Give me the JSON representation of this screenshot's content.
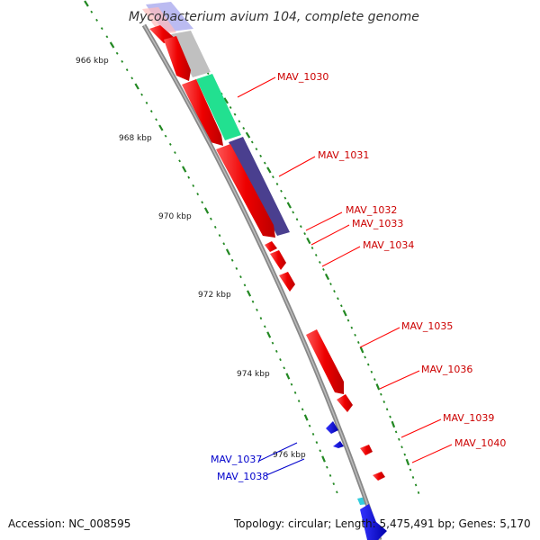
{
  "title": "Mycobacterium avium 104, complete genome",
  "footer": {
    "accession": "Accession: NC_008595",
    "summary": "Topology: circular; Length: 5,475,491 bp; Genes: 5,170"
  },
  "colors": {
    "forward_gene": "#ff0000",
    "reverse_gene": "#0000cc",
    "backbone": "#888888",
    "tick": "#228822",
    "feature_grey": "#c0c0c0",
    "feature_green": "#22e090",
    "feature_navy": "#4a3f8f",
    "feature_lavender": "#9999ee",
    "feature_cyan": "#33ccdd"
  },
  "scale": {
    "ticks": [
      {
        "label": "966 kbp"
      },
      {
        "label": "968 kbp"
      },
      {
        "label": "970 kbp"
      },
      {
        "label": "972 kbp"
      },
      {
        "label": "974 kbp"
      },
      {
        "label": "976 kbp"
      }
    ]
  },
  "genes": [
    {
      "label": "MAV_1030",
      "strand": "forward"
    },
    {
      "label": "MAV_1031",
      "strand": "forward"
    },
    {
      "label": "MAV_1032",
      "strand": "forward"
    },
    {
      "label": "MAV_1033",
      "strand": "forward"
    },
    {
      "label": "MAV_1034",
      "strand": "forward"
    },
    {
      "label": "MAV_1035",
      "strand": "forward"
    },
    {
      "label": "MAV_1036",
      "strand": "forward"
    },
    {
      "label": "MAV_1039",
      "strand": "forward"
    },
    {
      "label": "MAV_1040",
      "strand": "forward"
    },
    {
      "label": "MAV_1037",
      "strand": "reverse"
    },
    {
      "label": "MAV_1038",
      "strand": "reverse"
    }
  ]
}
